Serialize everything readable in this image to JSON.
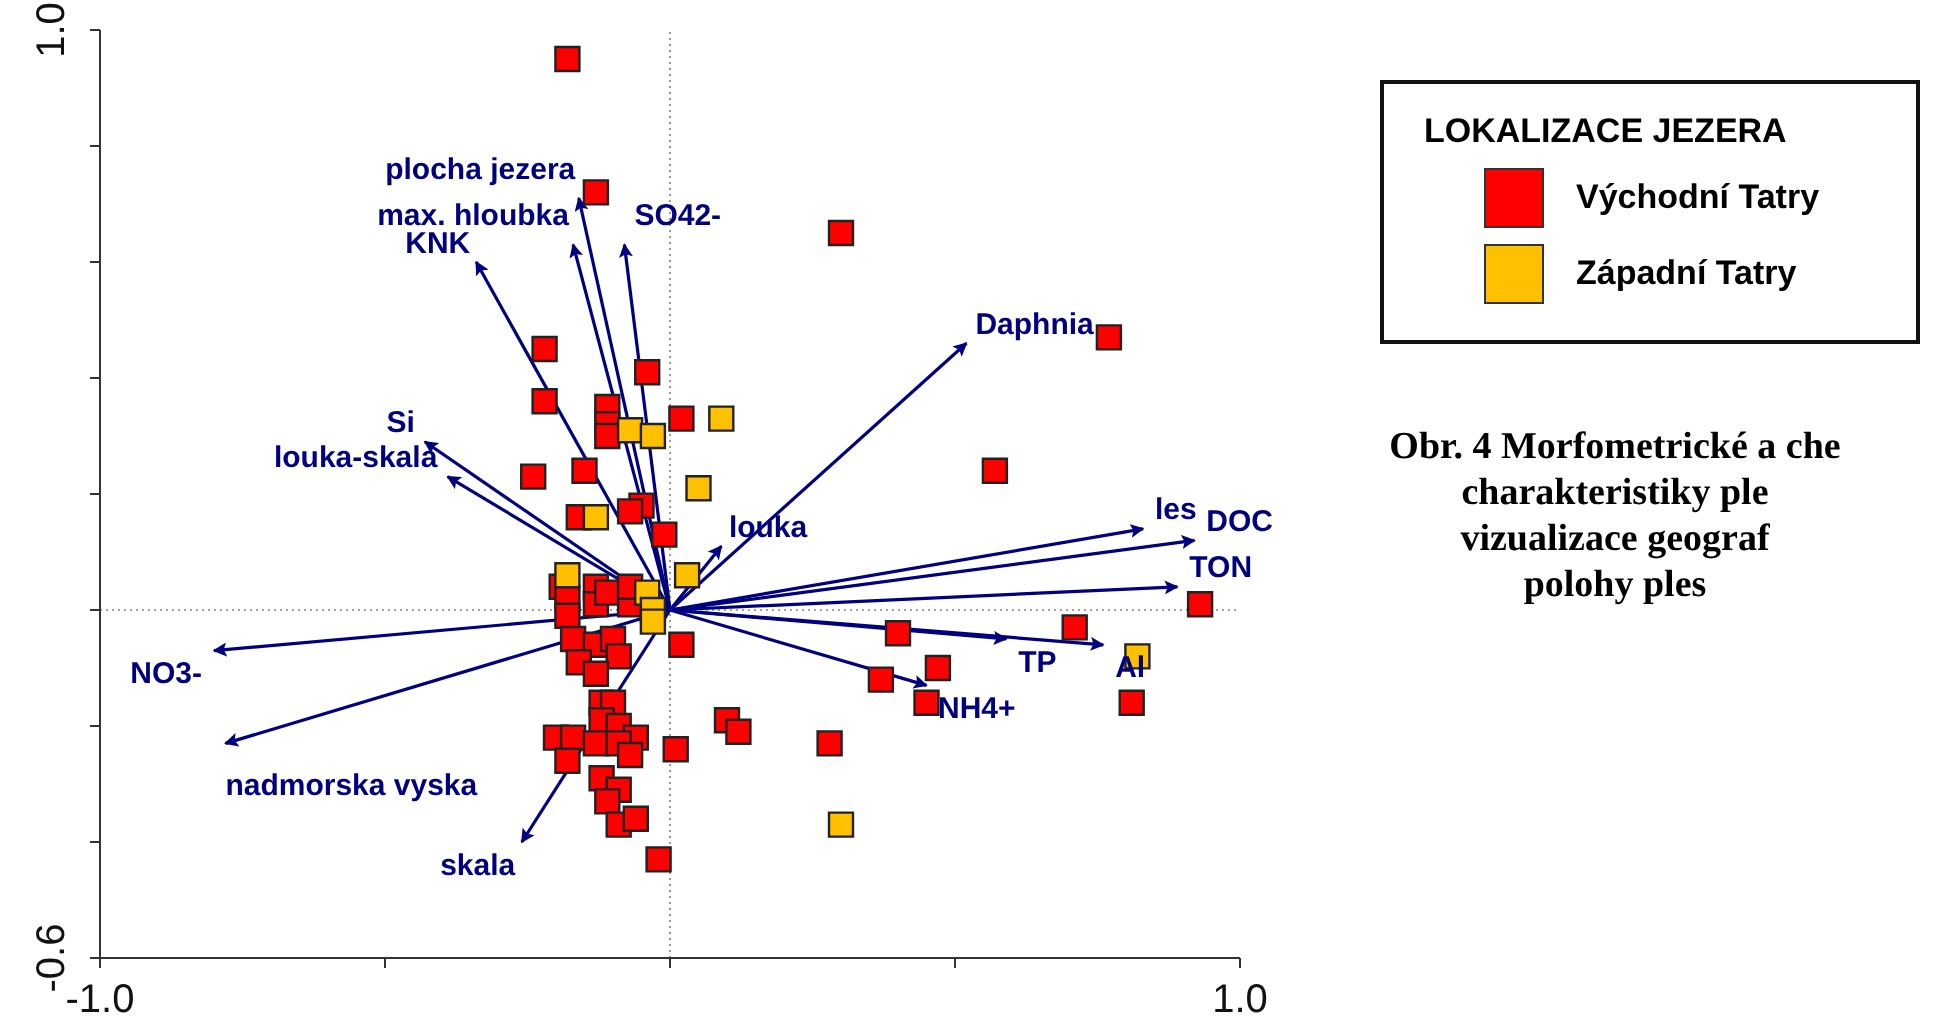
{
  "chart_data": {
    "type": "scatter",
    "legend_title": "LOKALIZACE JEZERA",
    "legend": "right",
    "xlim": [
      -1,
      1
    ],
    "ylim": [
      -0.6,
      1
    ],
    "xticks": [
      {
        "value": -1,
        "label": "-1.0"
      },
      {
        "value": -0.5,
        "label": null
      },
      {
        "value": 0,
        "label": null
      },
      {
        "value": 0.5,
        "label": null
      },
      {
        "value": 1,
        "label": "1.0"
      }
    ],
    "yticks": [
      {
        "value": -0.6,
        "label": "-0.6"
      },
      {
        "value": -0.4,
        "label": null
      },
      {
        "value": -0.2,
        "label": null
      },
      {
        "value": 0,
        "label": null
      },
      {
        "value": 0.2,
        "label": null
      },
      {
        "value": 0.4,
        "label": null
      },
      {
        "value": 0.6,
        "label": null
      },
      {
        "value": 0.8,
        "label": null
      },
      {
        "value": 1,
        "label": "1.0"
      }
    ],
    "ref_lines": [
      {
        "axis": "x",
        "value": 0,
        "line_style": "dotted",
        "color": "#999999"
      },
      {
        "axis": "y",
        "value": 0,
        "line_style": "dotted",
        "color": "#a0a0a0"
      }
    ],
    "annotations": [
      "Obr. 4 Morfometrické a che\ncharakteristiky ple\nvizualizace geograf\npolohy ples"
    ],
    "series": [
      {
        "type": "line",
        "marker": "none",
        "name": "plocha jezera",
        "color": "#000080",
        "x": [
          0,
          -0.16
        ],
        "values": [
          0,
          0.71
        ]
      },
      {
        "type": "line",
        "marker": "none",
        "name": "max. hloubka",
        "color": "#000080",
        "x": [
          0,
          -0.17
        ],
        "values": [
          0,
          0.63
        ]
      },
      {
        "type": "line",
        "marker": "none",
        "name": "SO42-",
        "color": "#000080",
        "x": [
          0,
          -0.08
        ],
        "values": [
          0,
          0.63
        ]
      },
      {
        "type": "line",
        "marker": "none",
        "name": "KNK",
        "color": "#000080",
        "x": [
          0,
          -0.34
        ],
        "values": [
          0,
          0.6
        ]
      },
      {
        "type": "line",
        "marker": "none",
        "name": "Si",
        "color": "#000080",
        "x": [
          0,
          -0.43
        ],
        "values": [
          0,
          0.29
        ]
      },
      {
        "type": "line",
        "marker": "none",
        "name": "louka-skala",
        "color": "#000080",
        "x": [
          0,
          -0.39
        ],
        "values": [
          0,
          0.23
        ]
      },
      {
        "type": "line",
        "marker": "none",
        "name": "Daphnia",
        "color": "#000080",
        "x": [
          0,
          0.52
        ],
        "values": [
          0,
          0.46
        ]
      },
      {
        "type": "line",
        "marker": "none",
        "name": "louka",
        "color": "#000080",
        "x": [
          0,
          0.09
        ],
        "values": [
          0,
          0.11
        ]
      },
      {
        "type": "line",
        "marker": "none",
        "name": "les",
        "color": "#000080",
        "x": [
          0,
          0.83
        ],
        "values": [
          0,
          0.14
        ]
      },
      {
        "type": "line",
        "marker": "none",
        "name": "DOC",
        "color": "#000080",
        "x": [
          0,
          0.92
        ],
        "values": [
          0,
          0.12
        ]
      },
      {
        "type": "line",
        "marker": "none",
        "name": "TON",
        "color": "#000080",
        "x": [
          0,
          0.89
        ],
        "values": [
          0,
          0.04
        ]
      },
      {
        "type": "line",
        "marker": "none",
        "name": "Al",
        "color": "#000080",
        "x": [
          0,
          0.76
        ],
        "values": [
          0,
          -0.06
        ]
      },
      {
        "type": "line",
        "marker": "none",
        "name": "TP",
        "color": "#000080",
        "x": [
          0,
          0.59
        ],
        "values": [
          0,
          -0.05
        ]
      },
      {
        "type": "line",
        "marker": "none",
        "name": "NH4+",
        "color": "#000080",
        "x": [
          0,
          0.45
        ],
        "values": [
          0,
          -0.13
        ]
      },
      {
        "type": "line",
        "marker": "none",
        "name": "NO3-",
        "color": "#000080",
        "x": [
          0,
          -0.8
        ],
        "values": [
          0,
          -0.07
        ]
      },
      {
        "type": "line",
        "marker": "none",
        "name": "nadmorska vyska",
        "color": "#000080",
        "x": [
          0,
          -0.78
        ],
        "values": [
          0,
          -0.23
        ]
      },
      {
        "type": "line",
        "marker": "none",
        "name": "skala",
        "color": "#000080",
        "x": [
          0,
          -0.26
        ],
        "values": [
          0,
          -0.4
        ]
      },
      {
        "marker": "square",
        "name": "Východní Tatry",
        "color": "#ff0000",
        "x": [
          -0.18,
          -0.13,
          0.3,
          0.77,
          -0.22,
          -0.04,
          -0.22,
          -0.11,
          -0.11,
          -0.11,
          0.02,
          -0.15,
          -0.24,
          0.57,
          -0.05,
          -0.07,
          -0.16,
          -0.01,
          -0.19,
          -0.18,
          -0.18,
          -0.13,
          -0.13,
          -0.11,
          -0.07,
          -0.07,
          -0.17,
          -0.13,
          -0.1,
          -0.09,
          -0.16,
          -0.13,
          0.02,
          -0.12,
          -0.1,
          -0.12,
          -0.09,
          -0.06,
          -0.2,
          -0.17,
          -0.13,
          -0.09,
          -0.07,
          -0.18,
          0.01,
          -0.12,
          -0.09,
          -0.11,
          -0.09,
          -0.06,
          -0.02,
          0.4,
          0.47,
          0.37,
          0.45,
          0.71,
          0.93,
          0.81,
          0.1,
          0.12,
          0.28
        ],
        "values": [
          0.95,
          0.72,
          0.65,
          0.47,
          0.45,
          0.41,
          0.36,
          0.35,
          0.32,
          0.3,
          0.33,
          0.24,
          0.23,
          0.24,
          0.18,
          0.17,
          0.16,
          0.13,
          0.04,
          0.02,
          -0.01,
          0.04,
          0.01,
          0.03,
          0.01,
          0.04,
          -0.05,
          -0.06,
          -0.05,
          -0.08,
          -0.09,
          -0.11,
          -0.06,
          -0.16,
          -0.16,
          -0.19,
          -0.2,
          -0.22,
          -0.22,
          -0.22,
          -0.23,
          -0.23,
          -0.25,
          -0.26,
          -0.24,
          -0.29,
          -0.31,
          -0.33,
          -0.37,
          -0.36,
          -0.43,
          -0.04,
          -0.1,
          -0.12,
          -0.16,
          -0.03,
          0.01,
          -0.16,
          -0.19,
          -0.21,
          -0.23
        ]
      },
      {
        "marker": "square",
        "name": "Západní Tatry",
        "color": "#ffc000",
        "x": [
          0.09,
          0.05,
          -0.07,
          -0.03,
          -0.13,
          -0.18,
          -0.04,
          -0.03,
          -0.03,
          0.03,
          0.82,
          0.3
        ],
        "values": [
          0.33,
          0.21,
          0.31,
          0.3,
          0.16,
          0.06,
          0.03,
          0,
          -0.02,
          0.06,
          -0.08,
          -0.37
        ]
      }
    ]
  }
}
